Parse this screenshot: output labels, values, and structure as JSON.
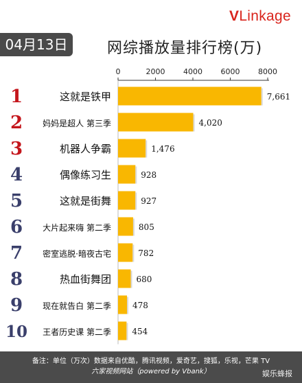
{
  "logo": {
    "v": "V",
    "rest": "Linkage"
  },
  "date_badge": "04月13日",
  "title": "网综播放量排行榜(万)",
  "colors": {
    "bar": "#f9b701",
    "rank": "#c4161c",
    "rank_dark": "#3a3f6b",
    "axis": "#333333"
  },
  "chart_data": {
    "type": "bar",
    "orientation": "horizontal",
    "title": "网综播放量排行榜(万)",
    "ranks": [
      "1",
      "2",
      "3",
      "4",
      "5",
      "6",
      "7",
      "8",
      "9",
      "10"
    ],
    "categories": [
      "这就是铁甲",
      "妈妈是超人 第三季",
      "机器人争霸",
      "偶像练习生",
      "这就是街舞",
      "大片起来嗨 第二季",
      "密室逃脱·暗夜古宅",
      "热血街舞团",
      "现在就告白 第二季",
      "王者历史课 第二季"
    ],
    "values": [
      7661,
      4020,
      1476,
      928,
      927,
      805,
      782,
      680,
      478,
      454
    ],
    "value_labels": [
      "7,661",
      "4,020",
      "1,476",
      "928",
      "927",
      "805",
      "782",
      "680",
      "478",
      "454"
    ],
    "xlim": [
      0,
      8000
    ],
    "xticks": [
      "0",
      "2000",
      "4000",
      "6000",
      "8000"
    ],
    "xtick_values": [
      0,
      2000,
      4000,
      6000,
      8000
    ]
  },
  "footer": {
    "line1": "备注：单位（万次）数据来自优酷，腾讯视频，爱奇艺，搜狐，乐视，芒果 TV",
    "line2": "六家视频网站（powered by Vbank）"
  },
  "watermark": "娱乐蜂报"
}
